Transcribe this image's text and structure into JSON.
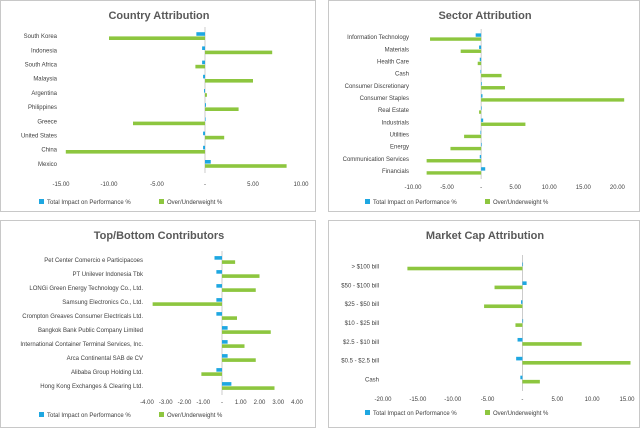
{
  "colors": {
    "impact": "#1ea7e1",
    "weight": "#8dc63f",
    "axis": "#bfbfbf"
  },
  "legend": {
    "impact": "Total Impact on Performance %",
    "weight": "Over/Underweight %"
  },
  "chart_data": [
    {
      "type": "bar",
      "orientation": "horizontal",
      "title": "Country Attribution",
      "categories": [
        "South Korea",
        "Indonesia",
        "South Africa",
        "Malaysia",
        "Argentina",
        "Philippines",
        "Greece",
        "United States",
        "China",
        "Mexico"
      ],
      "series": [
        {
          "name": "Total Impact on Performance %",
          "values": [
            -0.9,
            -0.3,
            -0.3,
            -0.2,
            -0.1,
            0.1,
            0.0,
            -0.2,
            -0.2,
            0.6
          ]
        },
        {
          "name": "Over/Underweight %",
          "values": [
            -10.0,
            7.0,
            -1.0,
            5.0,
            0.2,
            3.5,
            -7.5,
            2.0,
            -14.5,
            8.5
          ]
        }
      ],
      "ticks": [
        "-15.00",
        "-10.00",
        "-5.00",
        "-",
        "5.00",
        "10.00"
      ],
      "xlim": [
        -15,
        10
      ]
    },
    {
      "type": "bar",
      "orientation": "horizontal",
      "title": "Sector Attribution",
      "categories": [
        "Information Technology",
        "Materials",
        "Health Care",
        "Cash",
        "Consumer Discretionary",
        "Consumer Staples",
        "Real Estate",
        "Industrials",
        "Utilities",
        "Energy",
        "Communication Services",
        "Financials"
      ],
      "series": [
        {
          "name": "Total Impact on Performance %",
          "values": [
            -0.8,
            -0.3,
            -0.2,
            -0.1,
            0.1,
            0.2,
            0.0,
            0.3,
            -0.1,
            0.0,
            -0.2,
            0.6
          ]
        },
        {
          "name": "Over/Underweight %",
          "values": [
            -7.5,
            -3.0,
            -0.5,
            3.0,
            3.5,
            21.0,
            -0.3,
            6.5,
            -2.5,
            -4.5,
            -8.0,
            -8.0
          ]
        }
      ],
      "ticks": [
        "-10.00",
        "-5.00",
        "-",
        "5.00",
        "10.00",
        "15.00",
        "20.00"
      ],
      "xlim": [
        -10,
        22
      ]
    },
    {
      "type": "bar",
      "orientation": "horizontal",
      "title": "Top/Bottom Contributors",
      "categories": [
        "Pet Center Comercio e Participacoes",
        "PT Unilever Indonesia Tbk",
        "LONGi Green Energy Technology Co., Ltd.",
        "Samsung Electronics Co., Ltd.",
        "Crompton Greaves Consumer Electricals Ltd.",
        "Bangkok Bank Public Company Limited",
        "International Container Terminal Services, Inc.",
        "Arca Continental SAB de CV",
        "Alibaba Group Holding Ltd.",
        "Hong Kong Exchanges & Clearing Ltd."
      ],
      "series": [
        {
          "name": "Total Impact on Performance %",
          "values": [
            -0.4,
            -0.3,
            -0.3,
            -0.3,
            -0.3,
            0.3,
            0.3,
            0.3,
            -0.3,
            0.5
          ]
        },
        {
          "name": "Over/Underweight %",
          "values": [
            0.7,
            2.0,
            1.8,
            -3.7,
            0.8,
            2.6,
            1.2,
            1.8,
            -1.1,
            2.8
          ]
        }
      ],
      "ticks": [
        "-4.00",
        "-3.00",
        "-2.00",
        "-1.00",
        "-",
        "1.00",
        "2.00",
        "3.00",
        "4.00"
      ],
      "xlim": [
        -4,
        4
      ]
    },
    {
      "type": "bar",
      "orientation": "horizontal",
      "title": "Market Cap Attribution",
      "categories": [
        "> $100 bill",
        "$50 - $100 bill",
        "$25 - $50 bill",
        "$10 - $25 bill",
        "$2.5 - $10 bill",
        "$0.5 - $2.5 bill",
        "Cash"
      ],
      "series": [
        {
          "name": "Total Impact on Performance %",
          "values": [
            0.0,
            0.6,
            -0.2,
            0.1,
            -0.7,
            -0.9,
            -0.3
          ]
        },
        {
          "name": "Over/Underweight %",
          "values": [
            -16.5,
            -4.0,
            -5.5,
            -1.0,
            8.5,
            15.5,
            2.5
          ]
        }
      ],
      "ticks": [
        "-20.00",
        "-15.00",
        "-10.00",
        "-5.00",
        "-",
        "5.00",
        "10.00",
        "15.00"
      ],
      "xlim": [
        -20,
        15
      ]
    }
  ]
}
